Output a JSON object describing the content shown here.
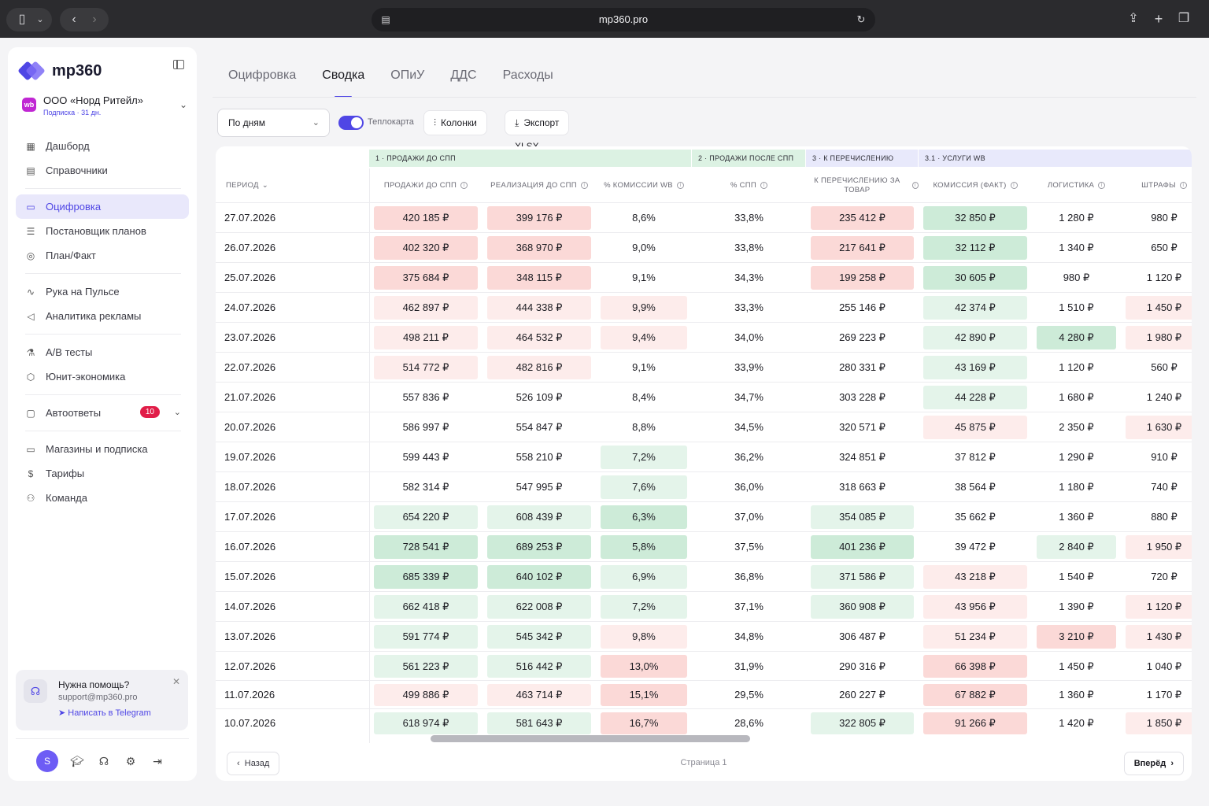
{
  "browser": {
    "url": "mp360.pro"
  },
  "sidebar": {
    "logo": "mp360",
    "org": {
      "badge": "wb",
      "name": "ООО «Норд Ритейл»",
      "subscription": "Подписка · 31 дн."
    },
    "groups": [
      [
        {
          "label": "Дашборд",
          "icon": "grid-icon"
        },
        {
          "label": "Справочники",
          "icon": "book-icon"
        }
      ],
      [
        {
          "label": "Оцифровка",
          "icon": "wallet-icon",
          "active": true
        },
        {
          "label": "Постановщик планов",
          "icon": "list-icon"
        },
        {
          "label": "План/Факт",
          "icon": "target-icon"
        }
      ],
      [
        {
          "label": "Рука на Пульсе",
          "icon": "pulse-icon"
        },
        {
          "label": "Аналитика рекламы",
          "icon": "megaphone-icon"
        }
      ],
      [
        {
          "label": "A/B тесты",
          "icon": "flask-icon"
        },
        {
          "label": "Юнит-экономика",
          "icon": "cube-icon"
        }
      ],
      [
        {
          "label": "Автоответы",
          "icon": "chat-icon",
          "count": "10"
        }
      ],
      [
        {
          "label": "Магазины и подписка",
          "icon": "card-icon"
        },
        {
          "label": "Тарифы",
          "icon": "dollar-icon"
        },
        {
          "label": "Команда",
          "icon": "users-icon"
        }
      ]
    ],
    "help": {
      "title": "Нужна помощь?",
      "email": "support@mp360.pro",
      "link": "Написать в Telegram"
    },
    "avatar": "S"
  },
  "tabs": [
    "Оцифровка",
    "Сводка",
    "ОПиУ",
    "ДДС",
    "Расходы"
  ],
  "active_tab": 1,
  "toolbar": {
    "period_select": "По дням",
    "heatmap_label": "Теплокарта",
    "columns_label": "Колонки",
    "export_label": "Экспорт XLSX"
  },
  "table": {
    "groups": [
      "1 · ПРОДАЖИ ДО СПП",
      "2 · ПРОДАЖИ ПОСЛЕ СПП",
      "3 · К ПЕРЕЧИСЛЕНИЮ",
      "3.1 · УСЛУГИ WB"
    ],
    "headers": [
      "ПЕРИОД",
      "ПРОДАЖИ ДО СПП",
      "РЕАЛИЗАЦИЯ ДО СПП",
      "% КОМИССИИ WB",
      "% СПП",
      "К ПЕРЕЧИСЛЕНИЮ ЗА ТОВАР",
      "КОМИССИЯ (ФАКТ)",
      "ЛОГИСТИКА",
      "ШТРАФЫ"
    ],
    "rows": [
      [
        "27.07.2026",
        "420 185 ₽",
        "399 176 ₽",
        "8,6%",
        "33,8%",
        "235 412 ₽",
        "32 850 ₽",
        "1 280 ₽",
        "980 ₽"
      ],
      [
        "26.07.2026",
        "402 320 ₽",
        "368 970 ₽",
        "9,0%",
        "33,8%",
        "217 641 ₽",
        "32 112 ₽",
        "1 340 ₽",
        "650 ₽"
      ],
      [
        "25.07.2026",
        "375 684 ₽",
        "348 115 ₽",
        "9,1%",
        "34,3%",
        "199 258 ₽",
        "30 605 ₽",
        "980 ₽",
        "1 120 ₽"
      ],
      [
        "24.07.2026",
        "462 897 ₽",
        "444 338 ₽",
        "9,9%",
        "33,3%",
        "255 146 ₽",
        "42 374 ₽",
        "1 510 ₽",
        "1 450 ₽"
      ],
      [
        "23.07.2026",
        "498 211 ₽",
        "464 532 ₽",
        "9,4%",
        "34,0%",
        "269 223 ₽",
        "42 890 ₽",
        "4 280 ₽",
        "1 980 ₽"
      ],
      [
        "22.07.2026",
        "514 772 ₽",
        "482 816 ₽",
        "9,1%",
        "33,9%",
        "280 331 ₽",
        "43 169 ₽",
        "1 120 ₽",
        "560 ₽"
      ],
      [
        "21.07.2026",
        "557 836 ₽",
        "526 109 ₽",
        "8,4%",
        "34,7%",
        "303 228 ₽",
        "44 228 ₽",
        "1 680 ₽",
        "1 240 ₽"
      ],
      [
        "20.07.2026",
        "586 997 ₽",
        "554 847 ₽",
        "8,8%",
        "34,5%",
        "320 571 ₽",
        "45 875 ₽",
        "2 350 ₽",
        "1 630 ₽"
      ],
      [
        "19.07.2026",
        "599 443 ₽",
        "558 210 ₽",
        "7,2%",
        "36,2%",
        "324 851 ₽",
        "37 812 ₽",
        "1 290 ₽",
        "910 ₽"
      ],
      [
        "18.07.2026",
        "582 314 ₽",
        "547 995 ₽",
        "7,6%",
        "36,0%",
        "318 663 ₽",
        "38 564 ₽",
        "1 180 ₽",
        "740 ₽"
      ],
      [
        "17.07.2026",
        "654 220 ₽",
        "608 439 ₽",
        "6,3%",
        "37,0%",
        "354 085 ₽",
        "35 662 ₽",
        "1 360 ₽",
        "880 ₽"
      ],
      [
        "16.07.2026",
        "728 541 ₽",
        "689 253 ₽",
        "5,8%",
        "37,5%",
        "401 236 ₽",
        "39 472 ₽",
        "2 840 ₽",
        "1 950 ₽"
      ],
      [
        "15.07.2026",
        "685 339 ₽",
        "640 102 ₽",
        "6,9%",
        "36,8%",
        "371 586 ₽",
        "43 218 ₽",
        "1 540 ₽",
        "720 ₽"
      ],
      [
        "14.07.2026",
        "662 418 ₽",
        "622 008 ₽",
        "7,2%",
        "37,1%",
        "360 908 ₽",
        "43 956 ₽",
        "1 390 ₽",
        "1 120 ₽"
      ],
      [
        "13.07.2026",
        "591 774 ₽",
        "545 342 ₽",
        "9,8%",
        "34,8%",
        "306 487 ₽",
        "51 234 ₽",
        "3 210 ₽",
        "1 430 ₽"
      ],
      [
        "12.07.2026",
        "561 223 ₽",
        "516 442 ₽",
        "13,0%",
        "31,9%",
        "290 316 ₽",
        "66 398 ₽",
        "1 450 ₽",
        "1 040 ₽"
      ],
      [
        "11.07.2026",
        "499 886 ₽",
        "463 714 ₽",
        "15,1%",
        "29,5%",
        "260 227 ₽",
        "67 882 ₽",
        "1 360 ₽",
        "1 170 ₽"
      ],
      [
        "10.07.2026",
        "618 974 ₽",
        "581 643 ₽",
        "16,7%",
        "28,6%",
        "322 805 ₽",
        "91 266 ₽",
        "1 420 ₽",
        "1 850 ₽"
      ]
    ],
    "heat": [
      [
        0,
        "r2",
        "r2",
        "n",
        "n",
        "r2",
        "g2",
        "n",
        "n"
      ],
      [
        0,
        "r2",
        "r2",
        "n",
        "n",
        "r2",
        "g2",
        "n",
        "n"
      ],
      [
        0,
        "r2",
        "r2",
        "n",
        "n",
        "r2",
        "g2",
        "n",
        "n"
      ],
      [
        0,
        "r1",
        "r1",
        "r1",
        "n",
        "n",
        "g1",
        "n",
        "r1"
      ],
      [
        0,
        "r1",
        "r1",
        "r1",
        "n",
        "n",
        "g1",
        "g2",
        "r1"
      ],
      [
        0,
        "r1",
        "r1",
        "n",
        "n",
        "n",
        "g1",
        "n",
        "n"
      ],
      [
        0,
        "n",
        "n",
        "n",
        "n",
        "n",
        "g1",
        "n",
        "n"
      ],
      [
        0,
        "n",
        "n",
        "n",
        "n",
        "n",
        "r1",
        "n",
        "r1"
      ],
      [
        0,
        "n",
        "n",
        "g1",
        "n",
        "n",
        "n",
        "n",
        "n"
      ],
      [
        0,
        "n",
        "n",
        "g1",
        "n",
        "n",
        "n",
        "n",
        "n"
      ],
      [
        0,
        "g1",
        "g1",
        "g2",
        "n",
        "g1",
        "n",
        "n",
        "n"
      ],
      [
        0,
        "g2",
        "g2",
        "g2",
        "n",
        "g2",
        "n",
        "g1",
        "r1"
      ],
      [
        0,
        "g2",
        "g2",
        "g1",
        "n",
        "g1",
        "r1",
        "n",
        "n"
      ],
      [
        0,
        "g1",
        "g1",
        "g1",
        "n",
        "g1",
        "r1",
        "n",
        "r1"
      ],
      [
        0,
        "g1",
        "g1",
        "r1",
        "n",
        "n",
        "r1",
        "r2",
        "r1"
      ],
      [
        0,
        "g1",
        "g1",
        "r2",
        "n",
        "n",
        "r2",
        "n",
        "n"
      ],
      [
        0,
        "r1",
        "r1",
        "r2",
        "n",
        "n",
        "r2",
        "n",
        "n"
      ],
      [
        0,
        "g1",
        "g1",
        "r2",
        "n",
        "g1",
        "r2",
        "n",
        "r1"
      ]
    ],
    "heat_colors": {
      "r1": "#fdeceb",
      "r2": "#fbd9d7",
      "g1": "#e4f4ea",
      "g2": "#cdebd8",
      "n": "transparent"
    },
    "group_colors": [
      "#dcf2e3",
      "#dcf2e3",
      "#e8e9fb",
      "#e8e9fb"
    ]
  },
  "pager": {
    "prev": "Назад",
    "label": "Страница 1",
    "next": "Вперёд"
  }
}
